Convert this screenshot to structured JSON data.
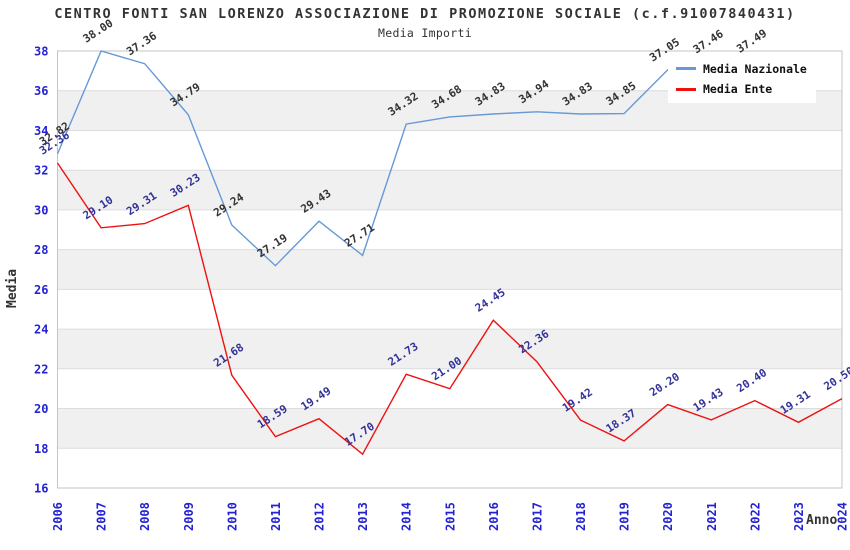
{
  "chart_data": {
    "type": "line",
    "title": "CENTRO FONTI SAN LORENZO ASSOCIAZIONE DI PROMOZIONE SOCIALE (c.f.91007840431)",
    "subtitle": "Media Importi",
    "xlabel": "Anno",
    "ylabel": "Media",
    "x": [
      2006,
      2007,
      2008,
      2009,
      2010,
      2011,
      2012,
      2013,
      2014,
      2015,
      2016,
      2017,
      2018,
      2019,
      2020,
      2021,
      2022,
      2023,
      2024
    ],
    "ylim": [
      16,
      38
    ],
    "yticks": [
      16,
      18,
      20,
      22,
      24,
      26,
      28,
      30,
      32,
      34,
      36,
      38
    ],
    "grid": "horizontal-alternating-bands",
    "legend_position": "top-right",
    "series": [
      {
        "name": "Media Nazionale",
        "color": "#6699d6",
        "label_color": "#333333",
        "values": [
          32.82,
          38.0,
          37.36,
          34.79,
          29.24,
          27.19,
          29.43,
          27.71,
          34.32,
          34.68,
          34.83,
          34.94,
          34.83,
          34.85,
          37.05,
          37.46,
          37.49,
          null,
          null
        ]
      },
      {
        "name": "Media Ente",
        "color": "#ee1111",
        "label_color": "#333399",
        "values": [
          32.36,
          29.1,
          29.31,
          30.23,
          21.68,
          18.59,
          19.49,
          17.7,
          21.73,
          21.0,
          24.45,
          22.36,
          19.42,
          18.37,
          20.2,
          19.43,
          20.4,
          19.31,
          20.5
        ]
      }
    ],
    "colors": {
      "tick_label": "#2323d3",
      "title_text": "#333333",
      "band_fill": "#f0f0f0",
      "grid_line": "#dcdcdc",
      "plot_border": "#c4c4c4",
      "background": "#ffffff"
    }
  }
}
